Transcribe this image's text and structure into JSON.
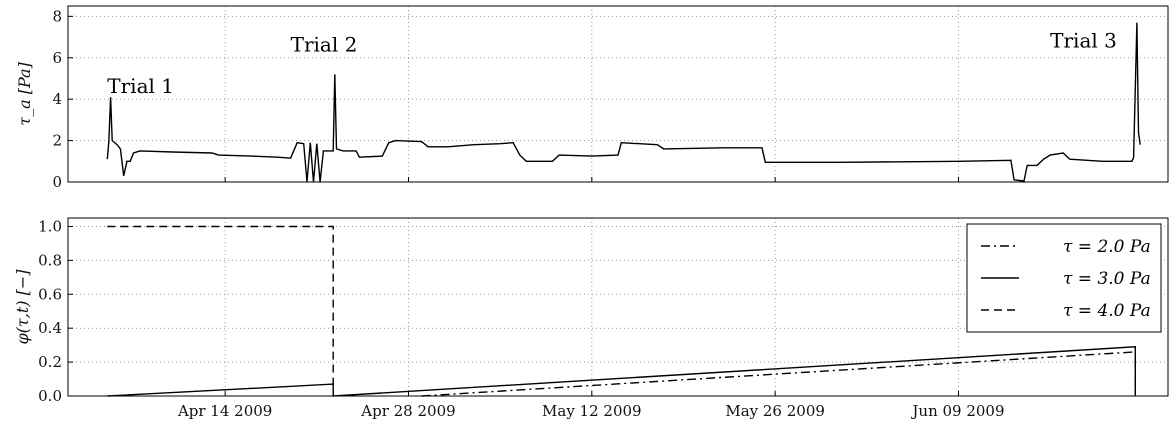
{
  "chart_data": [
    {
      "type": "line",
      "ylabel": "τ_a [Pa]",
      "ylim": [
        0,
        8.5
      ],
      "yticks": [
        0,
        2,
        4,
        6,
        8
      ],
      "xlim": [
        "2009-04-02",
        "2009-06-25"
      ],
      "xticks": [
        "2009-04-14",
        "2009-04-28",
        "2009-05-12",
        "2009-05-26",
        "2009-06-09"
      ],
      "xtick_labels": [
        "Apr 14 2009",
        "Apr 28 2009",
        "May 12 2009",
        "May 26 2009",
        "Jun 09 2009"
      ],
      "grid": true,
      "series": [
        {
          "points": [
            [
              "2009-04-05 00:00",
              1.1
            ],
            [
              "2009-04-05 03:00",
              2.0
            ],
            [
              "2009-04-05 06:00",
              4.1
            ],
            [
              "2009-04-05 09:00",
              2.0
            ],
            [
              "2009-04-05 18:00",
              1.8
            ],
            [
              "2009-04-06 00:00",
              1.6
            ],
            [
              "2009-04-06 06:00",
              0.3
            ],
            [
              "2009-04-06 12:00",
              1.0
            ],
            [
              "2009-04-06 18:00",
              1.0
            ],
            [
              "2009-04-07 00:00",
              1.4
            ],
            [
              "2009-04-07 12:00",
              1.5
            ],
            [
              "2009-04-10 00:00",
              1.45
            ],
            [
              "2009-04-13 00:00",
              1.4
            ],
            [
              "2009-04-13 12:00",
              1.3
            ],
            [
              "2009-04-16 00:00",
              1.25
            ],
            [
              "2009-04-18 00:00",
              1.2
            ],
            [
              "2009-04-19 00:00",
              1.15
            ],
            [
              "2009-04-19 12:00",
              1.9
            ],
            [
              "2009-04-20 00:00",
              1.85
            ],
            [
              "2009-04-20 06:00",
              0.0
            ],
            [
              "2009-04-20 12:00",
              1.9
            ],
            [
              "2009-04-20 18:00",
              0.0
            ],
            [
              "2009-04-21 00:00",
              1.85
            ],
            [
              "2009-04-21 06:00",
              0.0
            ],
            [
              "2009-04-21 12:00",
              1.5
            ],
            [
              "2009-04-22 00:00",
              1.5
            ],
            [
              "2009-04-22 06:00",
              1.5
            ],
            [
              "2009-04-22 09:00",
              5.2
            ],
            [
              "2009-04-22 12:00",
              1.6
            ],
            [
              "2009-04-23 00:00",
              1.5
            ],
            [
              "2009-04-24 00:00",
              1.5
            ],
            [
              "2009-04-24 06:00",
              1.2
            ],
            [
              "2009-04-26 00:00",
              1.25
            ],
            [
              "2009-04-26 12:00",
              1.9
            ],
            [
              "2009-04-27 00:00",
              2.0
            ],
            [
              "2009-04-29 00:00",
              1.95
            ],
            [
              "2009-04-29 12:00",
              1.7
            ],
            [
              "2009-05-01 00:00",
              1.7
            ],
            [
              "2009-05-03 00:00",
              1.8
            ],
            [
              "2009-05-05 00:00",
              1.85
            ],
            [
              "2009-05-06 00:00",
              1.9
            ],
            [
              "2009-05-06 12:00",
              1.3
            ],
            [
              "2009-05-07 00:00",
              1.0
            ],
            [
              "2009-05-09 00:00",
              1.0
            ],
            [
              "2009-05-09 12:00",
              1.3
            ],
            [
              "2009-05-12 00:00",
              1.25
            ],
            [
              "2009-05-14 00:00",
              1.3
            ],
            [
              "2009-05-14 06:00",
              1.9
            ],
            [
              "2009-05-17 00:00",
              1.8
            ],
            [
              "2009-05-17 12:00",
              1.6
            ],
            [
              "2009-05-22 00:00",
              1.65
            ],
            [
              "2009-05-25 00:00",
              1.65
            ],
            [
              "2009-05-25 06:00",
              0.95
            ],
            [
              "2009-05-31 00:00",
              0.95
            ],
            [
              "2009-06-09 00:00",
              1.0
            ],
            [
              "2009-06-13 00:00",
              1.05
            ],
            [
              "2009-06-13 06:00",
              0.1
            ],
            [
              "2009-06-14 00:00",
              0.05
            ],
            [
              "2009-06-14 06:00",
              0.8
            ],
            [
              "2009-06-15 00:00",
              0.8
            ],
            [
              "2009-06-15 12:00",
              1.1
            ],
            [
              "2009-06-16 00:00",
              1.3
            ],
            [
              "2009-06-17 00:00",
              1.4
            ],
            [
              "2009-06-17 12:00",
              1.1
            ],
            [
              "2009-06-20 00:00",
              1.0
            ],
            [
              "2009-06-22 06:00",
              1.0
            ],
            [
              "2009-06-22 09:00",
              1.2
            ],
            [
              "2009-06-22 15:00",
              7.7
            ],
            [
              "2009-06-22 18:00",
              2.4
            ],
            [
              "2009-06-22 21:00",
              1.8
            ]
          ],
          "style": "solid"
        }
      ],
      "annotations": [
        {
          "text": "Trial 1",
          "x": "2009-04-05",
          "y": 4.3
        },
        {
          "text": "Trial 2",
          "x": "2009-04-19",
          "y": 6.3
        },
        {
          "text": "Trial 3",
          "x": "2009-06-16",
          "y": 6.5
        }
      ]
    },
    {
      "type": "line",
      "ylabel": "φ(τ,t) [−]",
      "ylim": [
        0,
        1.05
      ],
      "yticks": [
        0.0,
        0.2,
        0.4,
        0.6,
        0.8,
        1.0
      ],
      "ytick_labels": [
        "0.0",
        "0.2",
        "0.4",
        "0.6",
        "0.8",
        "1.0"
      ],
      "xlim": [
        "2009-04-02",
        "2009-06-25"
      ],
      "xticks": [
        "2009-04-14",
        "2009-04-28",
        "2009-05-12",
        "2009-05-26",
        "2009-06-09"
      ],
      "xtick_labels": [
        "Apr 14 2009",
        "Apr 28 2009",
        "May 12 2009",
        "May 26 2009",
        "Jun 09 2009"
      ],
      "grid": true,
      "legend_position": "top-right",
      "series": [
        {
          "name": "τ = 2.0 Pa",
          "style": "dash-dot",
          "points": [
            [
              "2009-04-29 00:00",
              0.0
            ],
            [
              "2009-06-22 12:00",
              0.26
            ],
            [
              "2009-06-22 12:01",
              0.0
            ]
          ]
        },
        {
          "name": "τ = 3.0 Pa",
          "style": "solid",
          "points": [
            [
              "2009-04-05 00:00",
              0.0
            ],
            [
              "2009-04-22 06:00",
              0.07
            ],
            [
              "2009-04-22 06:01",
              0.0
            ],
            [
              "2009-06-22 12:00",
              0.29
            ],
            [
              "2009-06-22 12:01",
              0.0
            ]
          ]
        },
        {
          "name": "τ = 4.0 Pa",
          "style": "dashed",
          "points": [
            [
              "2009-04-05 00:00",
              1.0
            ],
            [
              "2009-04-22 06:00",
              1.0
            ],
            [
              "2009-04-22 06:01",
              0.0
            ]
          ]
        }
      ]
    }
  ]
}
